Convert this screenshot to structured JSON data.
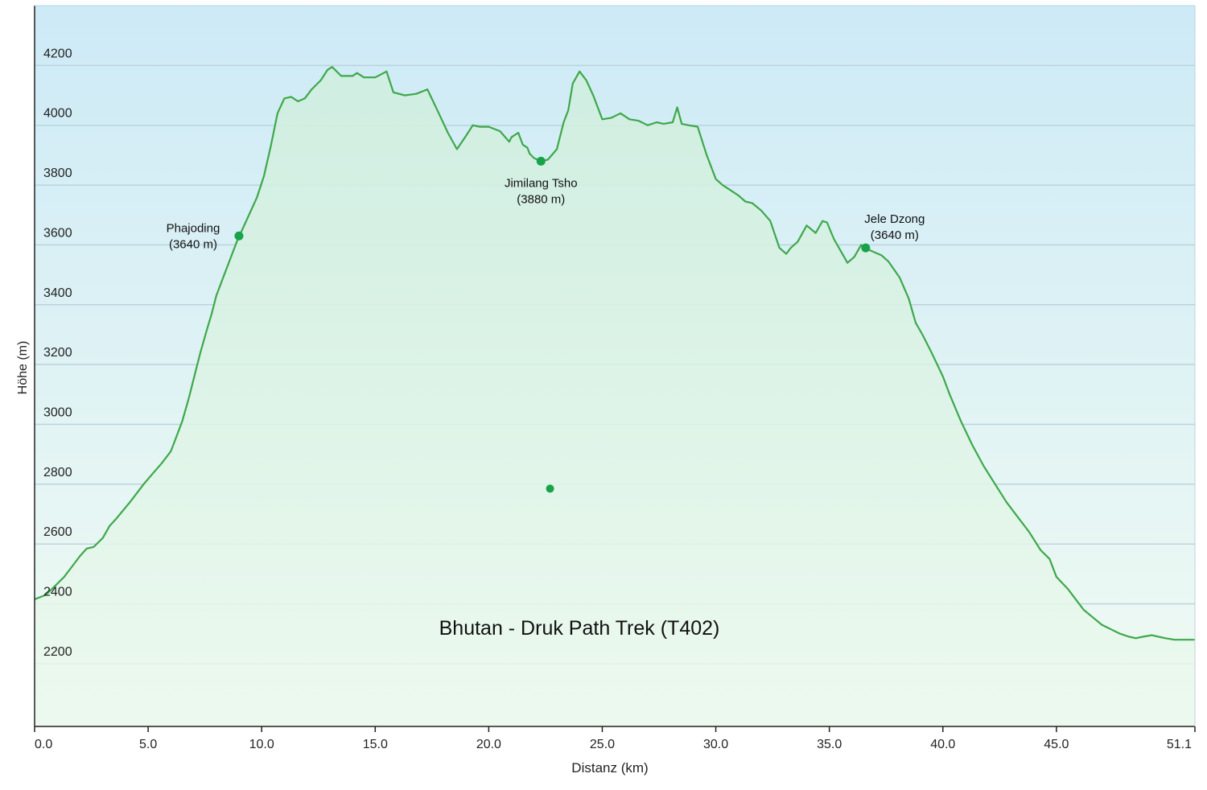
{
  "chart_data": {
    "type": "area",
    "title": "Bhutan - Druk Path Trek (T402)",
    "xlabel": "Distanz (km)",
    "ylabel": "Höhe (m)",
    "xlim": [
      0,
      51.1
    ],
    "ylim": [
      1990,
      4400
    ],
    "x_ticks": [
      "0.0",
      "5.0",
      "10.0",
      "15.0",
      "20.0",
      "25.0",
      "30.0",
      "35.0",
      "40.0",
      "45.0",
      "51.1"
    ],
    "y_ticks": [
      "2200",
      "2400",
      "2600",
      "2800",
      "3000",
      "3200",
      "3400",
      "3600",
      "3800",
      "4000",
      "4200"
    ],
    "grid": true,
    "colors": {
      "line": "#3da84a",
      "marker": "#16a34a",
      "bg_top": "#cdeaf7",
      "bg_bottom": "#f1fbf2",
      "fill_top": "#cfeedd",
      "fill_bottom": "#ecf9ee",
      "grid": "#bcd3dd"
    },
    "series": [
      {
        "x": [
          0,
          0.5,
          0.9,
          1.3,
          1.6,
          2.0,
          2.3,
          2.6,
          3.0,
          3.3,
          3.6,
          4.2,
          4.8,
          5.2,
          5.6,
          6.0,
          6.2,
          6.5,
          6.8,
          7.0,
          7.3,
          7.6,
          7.8,
          8.0,
          8.3,
          8.6,
          8.9,
          9.2,
          9.5,
          9.8,
          10.1,
          10.4,
          10.7,
          11.0,
          11.3,
          11.6,
          11.9,
          12.2,
          12.6,
          12.9,
          13.1,
          13.5,
          14.0,
          14.2,
          14.5,
          15.0,
          15.5,
          15.8,
          16.3,
          16.8,
          17.3,
          17.8,
          18.2,
          18.6,
          19.0,
          19.3,
          19.6,
          20.0,
          20.5,
          20.9,
          21.0,
          21.3,
          21.5,
          21.7,
          21.8,
          22.0,
          22.3,
          22.6,
          23.0,
          23.3,
          23.5,
          23.7,
          24.0,
          24.3,
          24.6,
          25.0,
          25.4,
          25.8,
          26.2,
          26.6,
          27.0,
          27.4,
          27.7,
          28.1,
          28.3,
          28.5,
          28.8,
          29.2,
          29.6,
          30.0,
          30.3,
          30.6,
          31.0,
          31.3,
          31.6,
          32.0,
          32.4,
          32.8,
          33.1,
          33.3,
          33.6,
          34.0,
          34.4,
          34.7,
          34.9,
          35.2,
          35.5,
          35.8,
          36.1,
          36.4,
          36.7,
          37.0,
          37.3,
          37.6,
          38.1,
          38.5,
          38.8,
          39.1,
          39.5,
          40.0,
          40.3,
          40.8,
          41.3,
          41.8,
          42.3,
          42.8,
          43.3,
          43.8,
          44.3,
          44.7,
          45.0,
          45.5,
          45.8,
          46.2,
          46.6,
          47.0,
          47.4,
          47.8,
          48.2,
          48.5,
          48.8,
          49.2,
          49.5,
          49.8,
          50.2,
          51.1
        ],
        "y": [
          2415,
          2430,
          2460,
          2490,
          2520,
          2560,
          2585,
          2590,
          2620,
          2660,
          2685,
          2740,
          2800,
          2835,
          2870,
          2910,
          2950,
          3010,
          3090,
          3150,
          3240,
          3320,
          3370,
          3430,
          3490,
          3550,
          3610,
          3660,
          3710,
          3760,
          3830,
          3930,
          4040,
          4090,
          4095,
          4080,
          4090,
          4120,
          4150,
          4185,
          4195,
          4165,
          4165,
          4175,
          4160,
          4160,
          4180,
          4110,
          4100,
          4105,
          4120,
          4040,
          3975,
          3920,
          3965,
          4000,
          3995,
          3995,
          3980,
          3945,
          3960,
          3975,
          3935,
          3925,
          3905,
          3890,
          3880,
          3885,
          3920,
          4010,
          4050,
          4140,
          4180,
          4150,
          4100,
          4020,
          4025,
          4040,
          4020,
          4015,
          4000,
          4010,
          4005,
          4010,
          4060,
          4005,
          4000,
          3995,
          3900,
          3820,
          3800,
          3785,
          3765,
          3745,
          3740,
          3715,
          3680,
          3590,
          3570,
          3590,
          3610,
          3665,
          3640,
          3680,
          3675,
          3620,
          3580,
          3540,
          3560,
          3600,
          3585,
          3575,
          3565,
          3545,
          3490,
          3420,
          3340,
          3300,
          3240,
          3160,
          3100,
          3010,
          2930,
          2860,
          2800,
          2740,
          2690,
          2640,
          2580,
          2550,
          2490,
          2450,
          2420,
          2380,
          2355,
          2330,
          2315,
          2300,
          2290,
          2285,
          2290,
          2295,
          2290,
          2285,
          2280,
          2280
        ]
      }
    ],
    "annotations": [
      {
        "name": "Phajoding",
        "elevation": "(3640 m)",
        "x": 9.0,
        "y": 3630
      },
      {
        "name": "Jimilang Tsho",
        "elevation": "(3880 m)",
        "x": 22.3,
        "y": 3880
      },
      {
        "name": "Jele Dzong",
        "elevation": "(3640 m)",
        "x": 36.6,
        "y": 3590
      }
    ],
    "stray_point": {
      "x": 22.7,
      "y": 2785
    }
  }
}
